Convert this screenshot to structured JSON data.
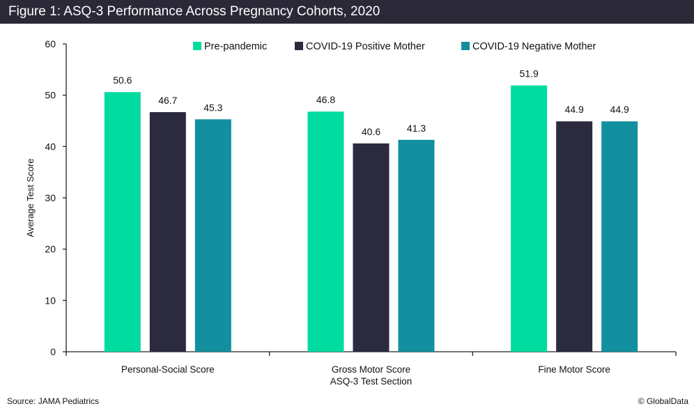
{
  "title": "Figure 1: ASQ-3 Performance Across Pregnancy Cohorts, 2020",
  "source": "Source: JAMA Pediatrics",
  "credit": "© GlobalData",
  "chart_data": {
    "type": "bar",
    "title": "Figure 1: ASQ-3 Performance Across Pregnancy Cohorts, 2020",
    "xlabel": "ASQ-3 Test Section",
    "ylabel": "Average Test Score",
    "categories": [
      "Personal-Social Score",
      "Gross Motor Score",
      "Fine Motor Score"
    ],
    "series": [
      {
        "name": "Pre-pandemic",
        "color": "#00dba0",
        "values": [
          50.6,
          46.8,
          51.9
        ]
      },
      {
        "name": "COVID-19 Positive Mother",
        "color": "#2b2a3e",
        "values": [
          46.7,
          40.6,
          44.9
        ]
      },
      {
        "name": "COVID-19 Negative Mother",
        "color": "#12909f",
        "values": [
          45.3,
          41.3,
          44.9
        ]
      }
    ],
    "ylim": [
      0,
      60
    ],
    "yticks": [
      0,
      10,
      20,
      30,
      40,
      50,
      60
    ],
    "grid": false,
    "legend": "top"
  }
}
